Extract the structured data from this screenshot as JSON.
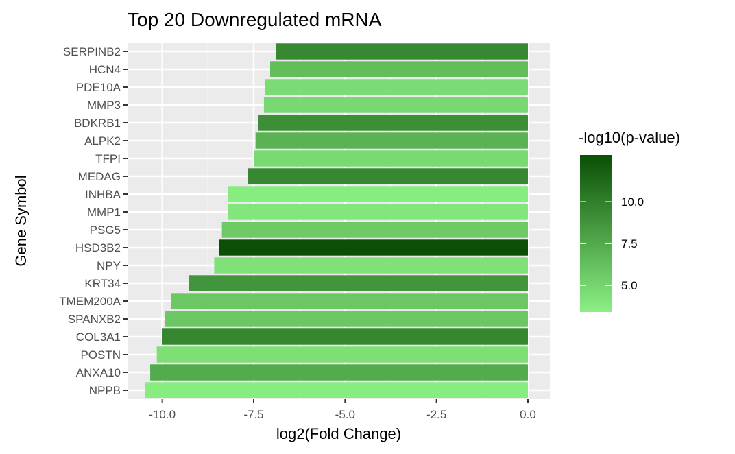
{
  "chart_data": {
    "type": "bar",
    "orientation": "horizontal",
    "title": "Top 20 Downregulated mRNA",
    "xlabel": "log2(Fold Change)",
    "ylabel": "Gene Symbol",
    "xlim": [
      -10.95,
      0.6
    ],
    "xticks": [
      -10.0,
      -7.5,
      -5.0,
      -2.5,
      0.0
    ],
    "xtick_labels": [
      "-10.0",
      "-7.5",
      "-5.0",
      "-2.5",
      "0.0"
    ],
    "grid": true,
    "categories": [
      "SERPINB2",
      "HCN4",
      "PDE10A",
      "MMP3",
      "BDKRB1",
      "ALPK2",
      "TFPI",
      "MEDAG",
      "INHBA",
      "MMP1",
      "PSG5",
      "HSD3B2",
      "NPY",
      "KRT34",
      "TMEM200A",
      "SPANXB2",
      "COL3A1",
      "POSTN",
      "ANXA10",
      "NPPB"
    ],
    "values": [
      -6.9,
      -7.05,
      -7.2,
      -7.22,
      -7.38,
      -7.45,
      -7.5,
      -7.65,
      -8.2,
      -8.2,
      -8.37,
      -8.45,
      -8.58,
      -9.28,
      -9.75,
      -9.92,
      -10.0,
      -10.15,
      -10.33,
      -10.47
    ],
    "color_values": [
      9.5,
      6.4,
      4.6,
      4.8,
      9.1,
      7.0,
      4.7,
      9.5,
      3.6,
      4.0,
      5.6,
      12.8,
      4.3,
      8.7,
      5.8,
      5.8,
      9.6,
      4.4,
      7.4,
      3.6
    ],
    "legend": {
      "title": "-log10(p-value)",
      "position": "right",
      "range": [
        3.4,
        12.8
      ],
      "ticks": [
        5.0,
        7.5,
        10.0
      ],
      "tick_labels": [
        "5.0",
        "7.5",
        "10.0"
      ],
      "color_low": "#8bf084",
      "color_high": "#0a4f05"
    },
    "panel_background": "#ebebeb",
    "grid_color": "#ffffff"
  }
}
